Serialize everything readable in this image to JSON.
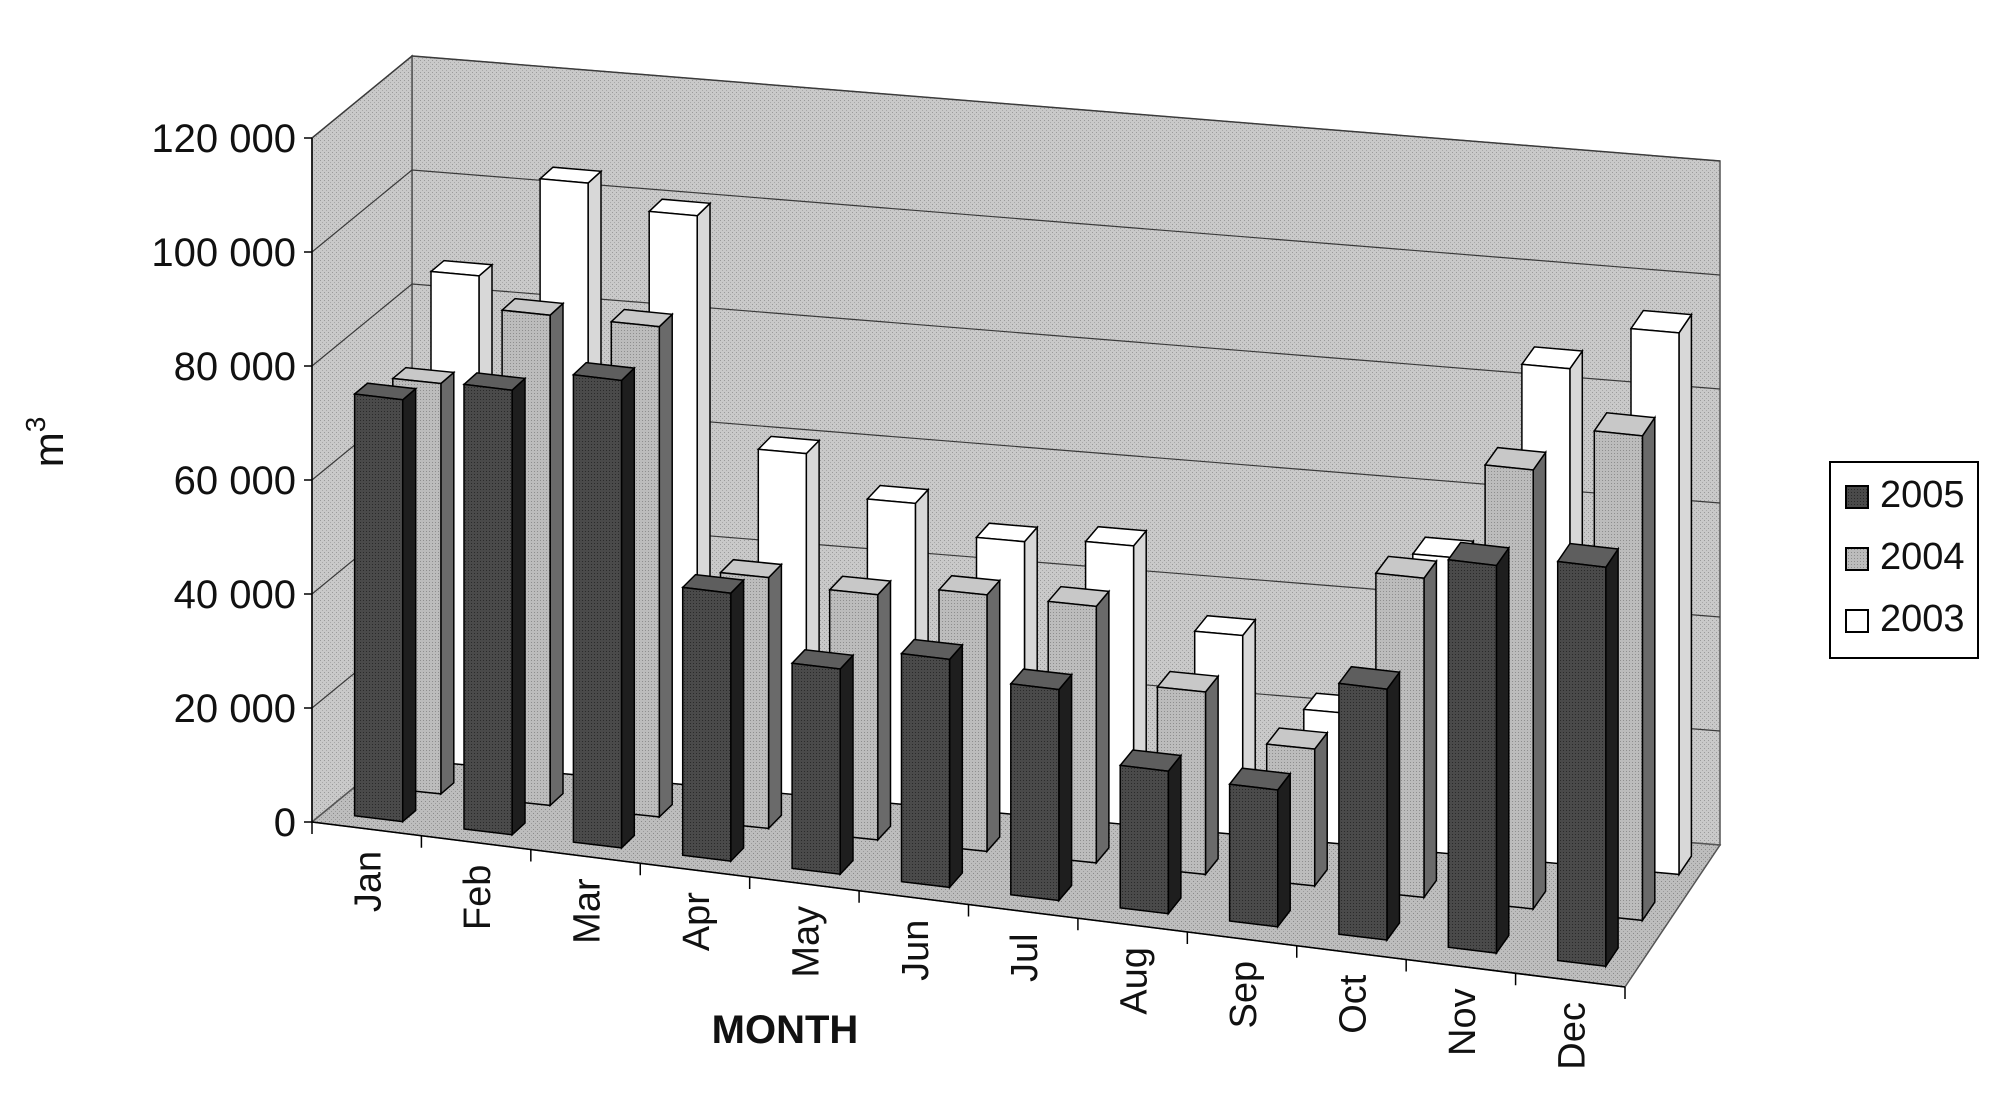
{
  "chart_data": {
    "type": "bar",
    "style": "3d-clustered-column",
    "title": "",
    "xlabel": "MONTH",
    "ylabel": "m",
    "ylabel_superscript": "3",
    "ylim": [
      0,
      120000
    ],
    "yticks": [
      "0",
      "20 000",
      "40 000",
      "60 000",
      "80 000",
      "100 000",
      "120 000"
    ],
    "ytick_values": [
      0,
      20000,
      40000,
      60000,
      80000,
      100000,
      120000
    ],
    "grid": true,
    "legend_position": "right",
    "categories": [
      "Jan",
      "Feb",
      "Mar",
      "Apr",
      "May",
      "Jun",
      "Jul",
      "Aug",
      "Sep",
      "Oct",
      "Nov",
      "Dec"
    ],
    "series": [
      {
        "name": "2005",
        "color": "#454545",
        "values": [
          74000,
          78000,
          82000,
          47000,
          36000,
          40000,
          37000,
          25000,
          24000,
          44000,
          68000,
          70000
        ]
      },
      {
        "name": "2004",
        "color": "#b4b4b4",
        "values": [
          72000,
          86000,
          86000,
          44000,
          43000,
          45000,
          45000,
          32000,
          24000,
          56000,
          77000,
          85000
        ]
      },
      {
        "name": "2003",
        "color": "#ffffff",
        "values": [
          86000,
          104000,
          100000,
          60000,
          53000,
          48000,
          49000,
          35000,
          23000,
          52000,
          87000,
          95000
        ]
      }
    ]
  }
}
